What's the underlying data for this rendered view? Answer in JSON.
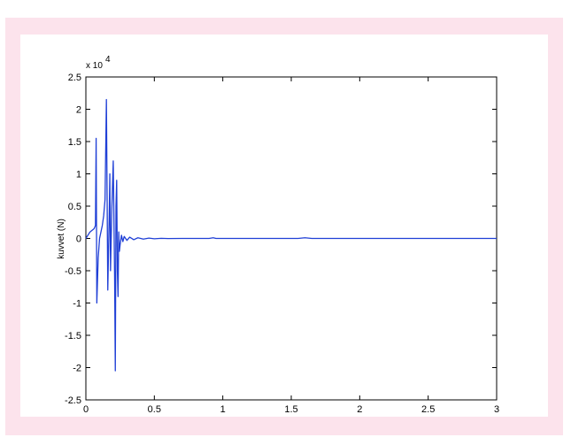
{
  "chart_data": {
    "type": "line",
    "title": "",
    "xlabel": "",
    "ylabel": "kuvvet (N)",
    "y_multiplier_label": "x 10",
    "y_multiplier_exponent": "4",
    "xlim": [
      0,
      3
    ],
    "ylim": [
      -2.5,
      2.5
    ],
    "x_ticks": [
      "0",
      "0.5",
      "1",
      "1.5",
      "2",
      "2.5",
      "3"
    ],
    "y_ticks": [
      "2.5",
      "2",
      "1.5",
      "1",
      "0.5",
      "0",
      "-0.5",
      "-1",
      "-1.5",
      "-2",
      "-2.5"
    ],
    "grid": false,
    "line_color": "#1f3fd6",
    "series": [
      {
        "x": [
          0,
          0.03,
          0.06,
          0.07,
          0.075,
          0.08,
          0.09,
          0.1,
          0.11,
          0.12,
          0.13,
          0.14,
          0.15,
          0.16,
          0.17,
          0.175,
          0.18,
          0.19,
          0.2,
          0.21,
          0.215,
          0.22,
          0.225,
          0.23,
          0.235,
          0.24,
          0.245,
          0.25,
          0.26,
          0.27,
          0.28,
          0.3,
          0.32,
          0.35,
          0.38,
          0.42,
          0.46,
          0.5,
          0.55,
          0.6,
          0.7,
          0.9,
          0.93,
          0.95,
          1.2,
          1.55,
          1.6,
          1.65,
          2.0,
          2.5,
          3.0
        ],
        "y": [
          0,
          0.1,
          0.15,
          0.2,
          1.55,
          -1.0,
          -0.3,
          0.0,
          0.1,
          0.2,
          0.35,
          0.6,
          2.15,
          -0.8,
          0.3,
          1.0,
          -0.5,
          0.5,
          1.2,
          -0.6,
          -2.05,
          0.5,
          0.9,
          -0.5,
          -0.9,
          0.1,
          -0.2,
          -0.1,
          0.05,
          -0.05,
          0.03,
          -0.03,
          0.02,
          -0.02,
          0.01,
          -0.01,
          0.005,
          -0.005,
          0.002,
          -0.002,
          0,
          0,
          0.01,
          0,
          0,
          0,
          0.01,
          0,
          0,
          0,
          0
        ]
      }
    ]
  }
}
